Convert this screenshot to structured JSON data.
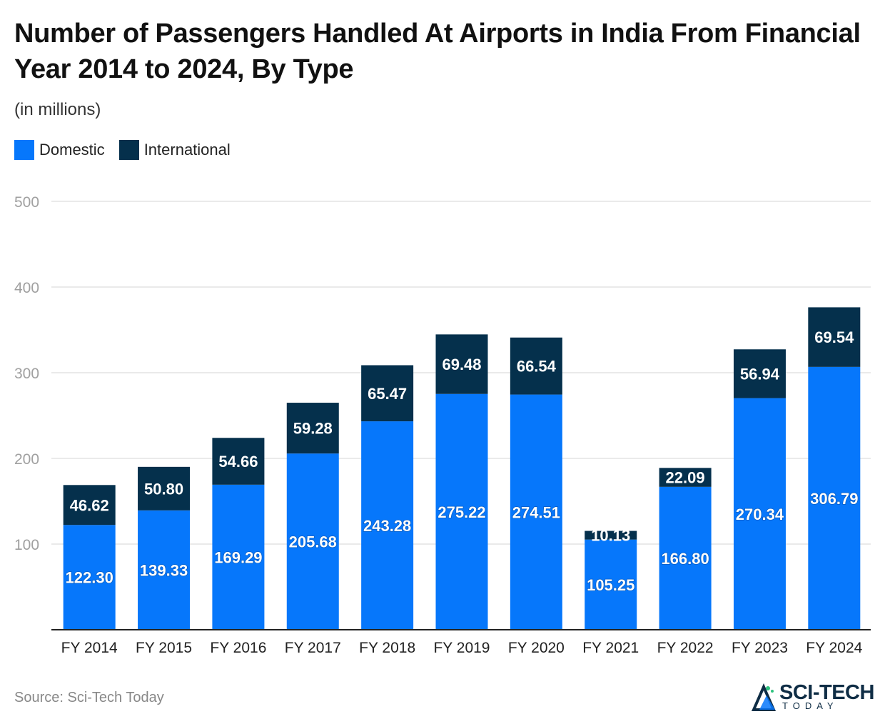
{
  "chart_data": {
    "type": "bar",
    "stacked": true,
    "title": "Number of Passengers Handled At Airports in India From Financial Year 2014 to 2024, By Type",
    "subtitle": "(in millions)",
    "categories": [
      "FY 2014",
      "FY 2015",
      "FY 2016",
      "FY 2017",
      "FY 2018",
      "FY 2019",
      "FY 2020",
      "FY 2021",
      "FY 2022",
      "FY 2023",
      "FY 2024"
    ],
    "series": [
      {
        "name": "Domestic",
        "color": "#0677fb",
        "values": [
          122.3,
          139.33,
          169.29,
          205.68,
          243.28,
          275.22,
          274.51,
          105.25,
          166.8,
          270.34,
          306.79
        ],
        "labels": [
          "122.30",
          "139.33",
          "169.29",
          "205.68",
          "243.28",
          "275.22",
          "274.51",
          "105.25",
          "166.80",
          "270.34",
          "306.79"
        ]
      },
      {
        "name": "International",
        "color": "#05304c",
        "values": [
          46.62,
          50.8,
          54.66,
          59.28,
          65.47,
          69.48,
          66.54,
          10.13,
          22.09,
          56.94,
          69.54
        ],
        "labels": [
          "46.62",
          "50.80",
          "54.66",
          "59.28",
          "65.47",
          "69.48",
          "66.54",
          "10.13",
          "22.09",
          "56.94",
          "69.54"
        ]
      }
    ],
    "yticks": [
      100,
      200,
      300,
      400,
      500
    ],
    "ylim": [
      0,
      500
    ],
    "grid": true,
    "legend": "top-left",
    "xlabel": "",
    "ylabel": ""
  },
  "source": "Source: Sci-Tech Today",
  "brand": {
    "name": "SCI-TECH",
    "sub": "TODAY"
  }
}
